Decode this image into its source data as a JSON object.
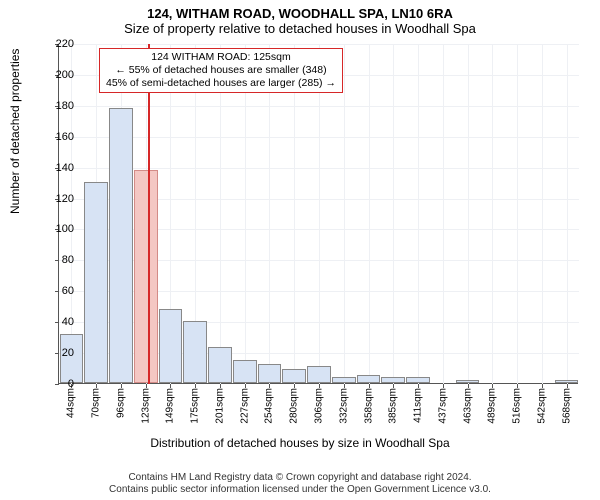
{
  "title_main": "124, WITHAM ROAD, WOODHALL SPA, LN10 6RA",
  "title_sub": "Size of property relative to detached houses in Woodhall Spa",
  "y_axis_label": "Number of detached properties",
  "x_axis_label": "Distribution of detached houses by size in Woodhall Spa",
  "chart": {
    "type": "histogram",
    "background_color": "#ffffff",
    "grid_color": "#eef0f4",
    "axis_color": "#555555",
    "ylim": [
      0,
      220
    ],
    "ytick_step": 20,
    "bar_fill": "#d7e3f4",
    "bar_border": "#888888",
    "highlight_fill": "#f4c7c3",
    "highlight_border": "#d38b87",
    "marker_color": "#d62728",
    "marker_position_sqm": 125,
    "x_start_sqm": 30,
    "x_bin_width_sqm": 26.3,
    "x_tick_labels": [
      "44sqm",
      "70sqm",
      "96sqm",
      "123sqm",
      "149sqm",
      "175sqm",
      "201sqm",
      "227sqm",
      "254sqm",
      "280sqm",
      "306sqm",
      "332sqm",
      "358sqm",
      "385sqm",
      "411sqm",
      "437sqm",
      "463sqm",
      "489sqm",
      "516sqm",
      "542sqm",
      "568sqm"
    ],
    "bars": [
      {
        "value": 32,
        "highlight": false
      },
      {
        "value": 130,
        "highlight": false
      },
      {
        "value": 178,
        "highlight": false
      },
      {
        "value": 138,
        "highlight": true
      },
      {
        "value": 48,
        "highlight": false
      },
      {
        "value": 40,
        "highlight": false
      },
      {
        "value": 23,
        "highlight": false
      },
      {
        "value": 15,
        "highlight": false
      },
      {
        "value": 12,
        "highlight": false
      },
      {
        "value": 9,
        "highlight": false
      },
      {
        "value": 11,
        "highlight": false
      },
      {
        "value": 4,
        "highlight": false
      },
      {
        "value": 5,
        "highlight": false
      },
      {
        "value": 4,
        "highlight": false
      },
      {
        "value": 4,
        "highlight": false
      },
      {
        "value": 0,
        "highlight": false
      },
      {
        "value": 2,
        "highlight": false
      },
      {
        "value": 0,
        "highlight": false
      },
      {
        "value": 0,
        "highlight": false
      },
      {
        "value": 0,
        "highlight": false
      },
      {
        "value": 2,
        "highlight": false
      }
    ],
    "annotation": {
      "border_color": "#d62728",
      "lines": [
        "124 WITHAM ROAD: 125sqm",
        "← 55% of detached houses are smaller (348)",
        "45% of semi-detached houses are larger (285) →"
      ]
    }
  },
  "footer_line1": "Contains HM Land Registry data © Crown copyright and database right 2024.",
  "footer_line2": "Contains public sector information licensed under the Open Government Licence v3.0."
}
